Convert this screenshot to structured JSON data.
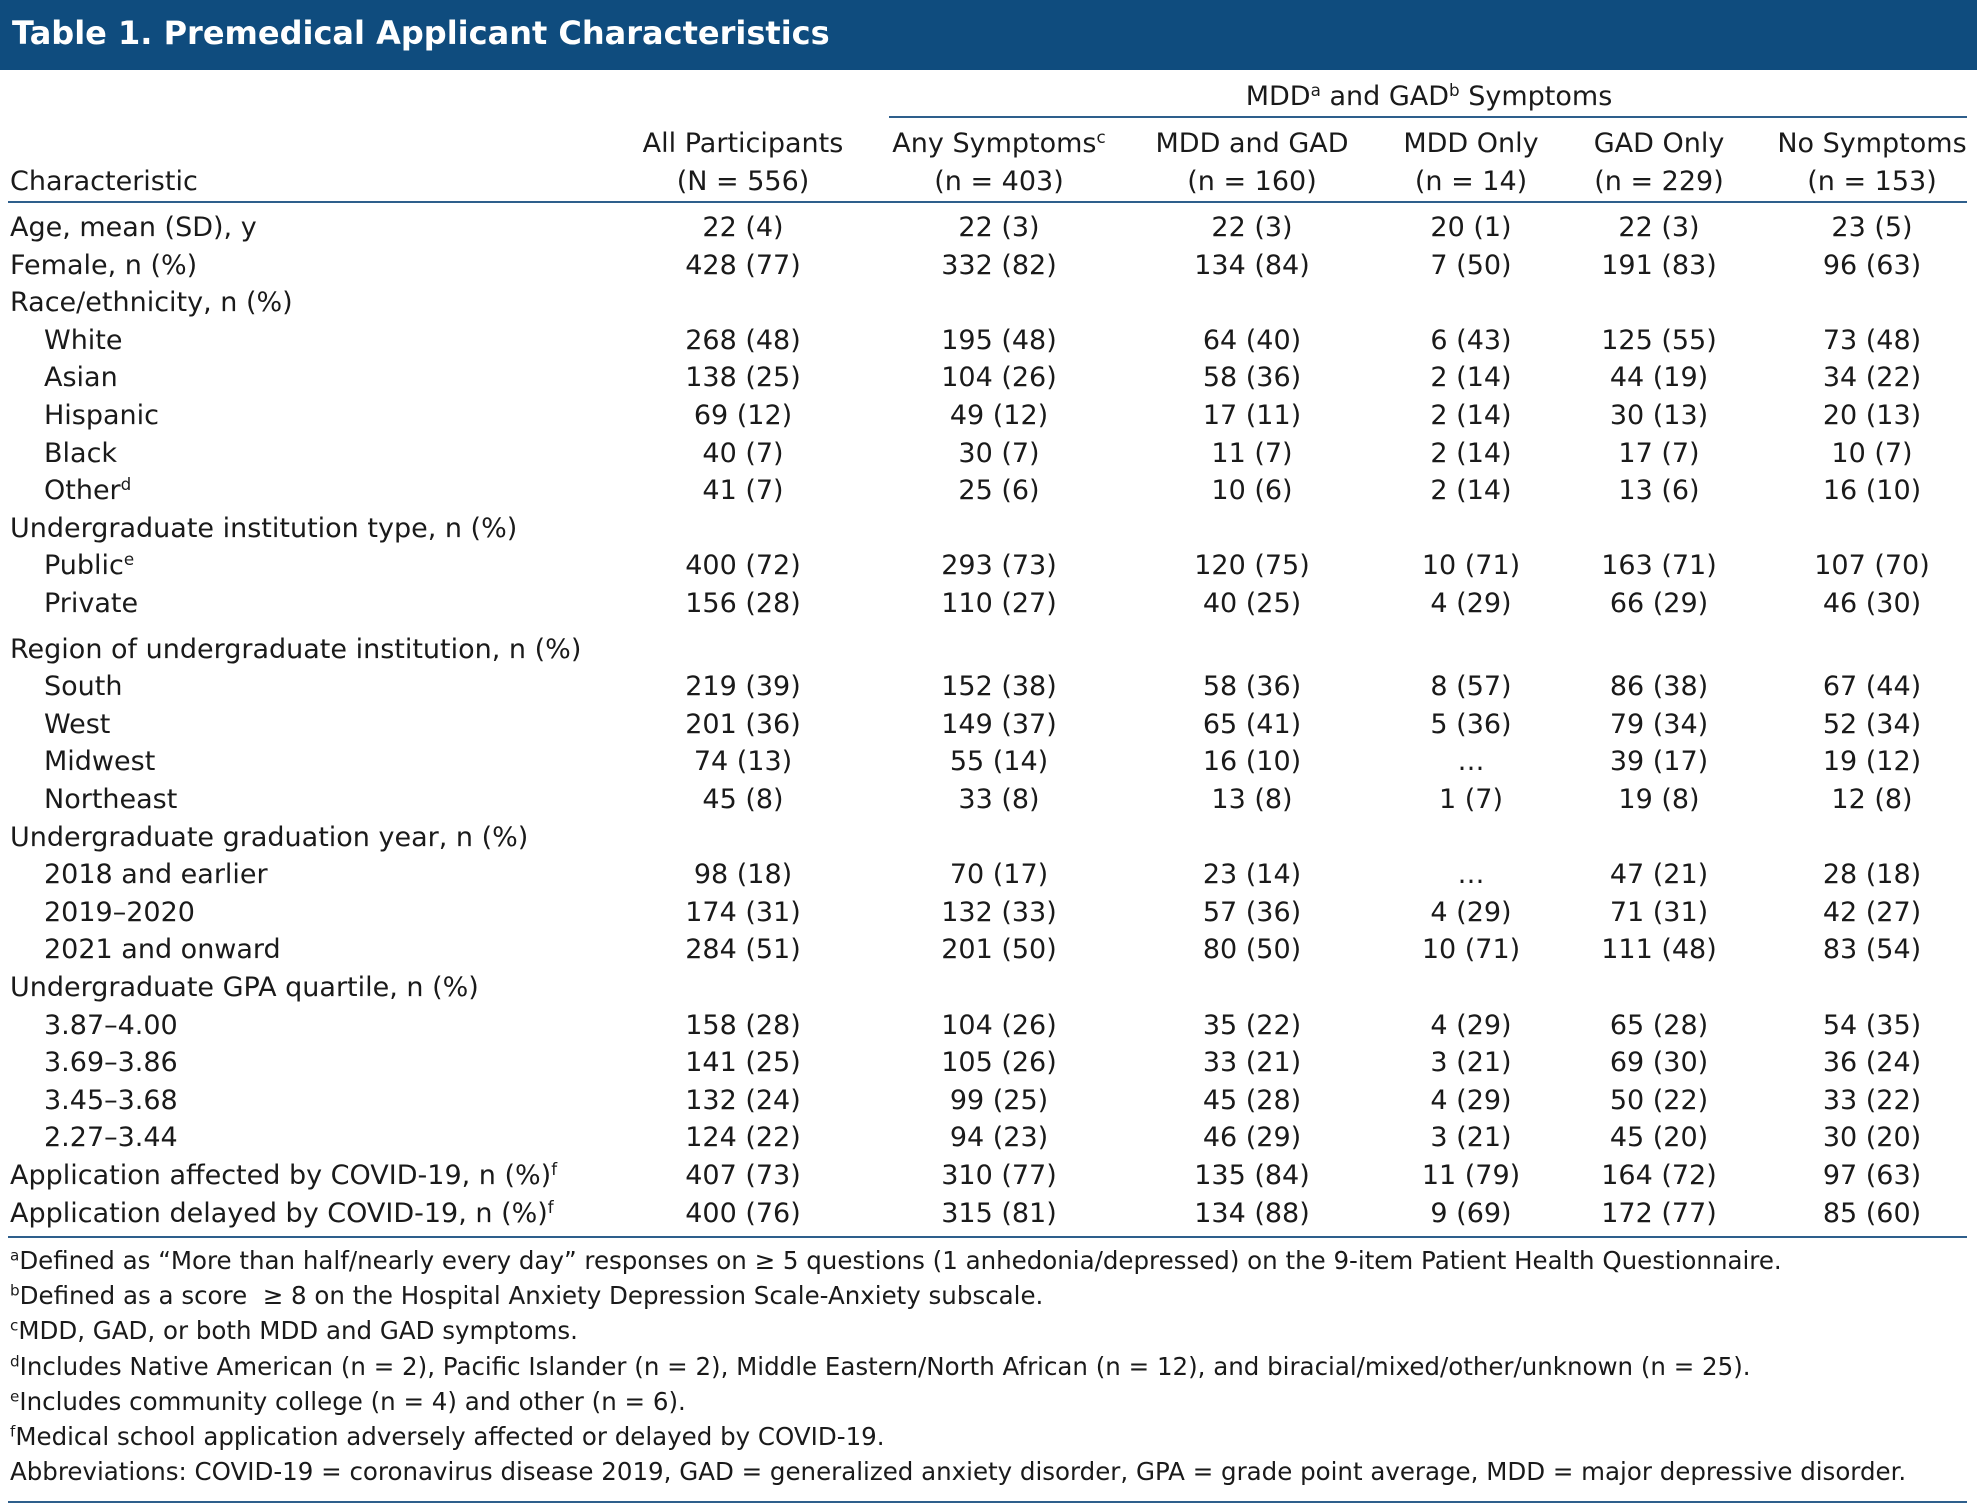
{
  "title": "Table 1. Premedical Applicant Characteristics",
  "table": {
    "spanner": [
      {
        "text": "MDD",
        "sup": "a"
      },
      {
        "text": " and GAD",
        "sup": "b"
      },
      {
        "text": " Symptoms"
      }
    ],
    "columns": [
      {
        "label": "Characteristic"
      },
      {
        "label": "All Participants",
        "n": "(N = 556)"
      },
      {
        "label": "Any Symptoms",
        "sup": "c",
        "n": "(n = 403)"
      },
      {
        "label": "MDD and GAD",
        "n": "(n = 160)"
      },
      {
        "label": "MDD Only",
        "n": "(n = 14)"
      },
      {
        "label": "GAD Only",
        "n": "(n = 229)"
      },
      {
        "label": "No Symptoms",
        "n": "(n = 153)"
      }
    ],
    "rows": [
      {
        "label": "Age, mean (SD), y",
        "values": [
          "22 (4)",
          "22 (3)",
          "22 (3)",
          "20 (1)",
          "22 (3)",
          "23 (5)"
        ]
      },
      {
        "label": "Female, n (%)",
        "values": [
          "428 (77)",
          "332 (82)",
          "134 (84)",
          "7 (50)",
          "191 (83)",
          "96 (63)"
        ]
      },
      {
        "label": "Race/ethnicity, n (%)",
        "subrows": [
          {
            "label": "White",
            "values": [
              "268 (48)",
              "195 (48)",
              "64 (40)",
              "6 (43)",
              "125 (55)",
              "73 (48)"
            ]
          },
          {
            "label": "Asian",
            "values": [
              "138 (25)",
              "104 (26)",
              "58 (36)",
              "2 (14)",
              "44 (19)",
              "34 (22)"
            ]
          },
          {
            "label": "Hispanic",
            "values": [
              "69 (12)",
              "49 (12)",
              "17 (11)",
              "2 (14)",
              "30 (13)",
              "20 (13)"
            ]
          },
          {
            "label": "Black",
            "values": [
              "40 (7)",
              "30 (7)",
              "11 (7)",
              "2 (14)",
              "17 (7)",
              "10 (7)"
            ]
          },
          {
            "label": "Other",
            "sup": "d",
            "values": [
              "41 (7)",
              "25 (6)",
              "10 (6)",
              "2 (14)",
              "13 (6)",
              "16 (10)"
            ]
          }
        ]
      },
      {
        "label": "Undergraduate institution type, n (%)",
        "subrows": [
          {
            "label": "Public",
            "sup": "e",
            "values": [
              "400 (72)",
              "293 (73)",
              "120 (75)",
              "10 (71)",
              "163 (71)",
              "107 (70)"
            ]
          },
          {
            "label": "Private",
            "values": [
              "156 (28)",
              "110 (27)",
              "40 (25)",
              "4 (29)",
              "66 (29)",
              "46 (30)"
            ]
          }
        ]
      },
      {
        "label": "Region of undergraduate institution, n (%)",
        "subrows": [
          {
            "label": "South",
            "values": [
              "219 (39)",
              "152 (38)",
              "58 (36)",
              "8 (57)",
              "86 (38)",
              "67 (44)"
            ]
          },
          {
            "label": "West",
            "values": [
              "201 (36)",
              "149 (37)",
              "65 (41)",
              "5 (36)",
              "79 (34)",
              "52 (34)"
            ]
          },
          {
            "label": "Midwest",
            "values": [
              "74 (13)",
              "55 (14)",
              "16 (10)",
              "…",
              "39 (17)",
              "19 (12)"
            ]
          },
          {
            "label": "Northeast",
            "values": [
              "45 (8)",
              "33 (8)",
              "13 (8)",
              "1 (7)",
              "19 (8)",
              "12 (8)"
            ]
          }
        ]
      },
      {
        "label": "Undergraduate graduation year, n (%)",
        "subrows": [
          {
            "label": "2018 and earlier",
            "values": [
              "98 (18)",
              "70 (17)",
              "23 (14)",
              "…",
              "47 (21)",
              "28 (18)"
            ]
          },
          {
            "label": "2019–2020",
            "values": [
              "174 (31)",
              "132 (33)",
              "57 (36)",
              "4 (29)",
              "71 (31)",
              "42 (27)"
            ]
          },
          {
            "label": "2021 and onward",
            "values": [
              "284 (51)",
              "201 (50)",
              "80 (50)",
              "10 (71)",
              "111 (48)",
              "83 (54)"
            ]
          }
        ]
      },
      {
        "label": "Undergraduate GPA quartile, n (%)",
        "subrows": [
          {
            "label": "3.87–4.00",
            "values": [
              "158 (28)",
              "104 (26)",
              "35 (22)",
              "4 (29)",
              "65 (28)",
              "54 (35)"
            ]
          },
          {
            "label": "3.69–3.86",
            "values": [
              "141 (25)",
              "105 (26)",
              "33 (21)",
              "3 (21)",
              "69 (30)",
              "36 (24)"
            ]
          },
          {
            "label": "3.45–3.68",
            "values": [
              "132 (24)",
              "99 (25)",
              "45 (28)",
              "4 (29)",
              "50 (22)",
              "33 (22)"
            ]
          },
          {
            "label": "2.27–3.44",
            "values": [
              "124 (22)",
              "94 (23)",
              "46 (29)",
              "3 (21)",
              "45 (20)",
              "30 (20)"
            ]
          }
        ]
      },
      {
        "label": "Application affected by COVID-19, n (%)",
        "sup": "f",
        "values": [
          "407 (73)",
          "310 (77)",
          "135 (84)",
          "11 (79)",
          "164 (72)",
          "97 (63)"
        ]
      },
      {
        "label": "Application delayed by COVID-19, n (%)",
        "sup": "f",
        "values": [
          "400 (76)",
          "315 (81)",
          "134 (88)",
          "9 (69)",
          "172 (77)",
          "85 (60)"
        ]
      }
    ],
    "footnotes": [
      {
        "mark": "a",
        "text": "Defined as “More than half/nearly every day” responses on ≥ 5 questions (1 anhedonia/depressed) on the 9-item Patient Health Questionnaire."
      },
      {
        "mark": "b",
        "text": "Defined as a score  ≥ 8 on the Hospital Anxiety Depression Scale-Anxiety subscale."
      },
      {
        "mark": "c",
        "text": "MDD, GAD, or both MDD and GAD symptoms."
      },
      {
        "mark": "d",
        "text": "Includes Native American (n = 2), Pacific Islander (n = 2), Middle Eastern/North African (n = 12), and biracial/mixed/other/unknown (n = 25)."
      },
      {
        "mark": "e",
        "text": "Includes community college (n = 4) and other (n = 6)."
      },
      {
        "mark": "f",
        "text": "Medical school application adversely affected or delayed by COVID-19."
      },
      {
        "text": "Abbreviations: COVID-19 = coronavirus disease 2019, GAD = generalized anxiety disorder, GPA = grade point average, MDD = major depressive disorder."
      }
    ]
  }
}
